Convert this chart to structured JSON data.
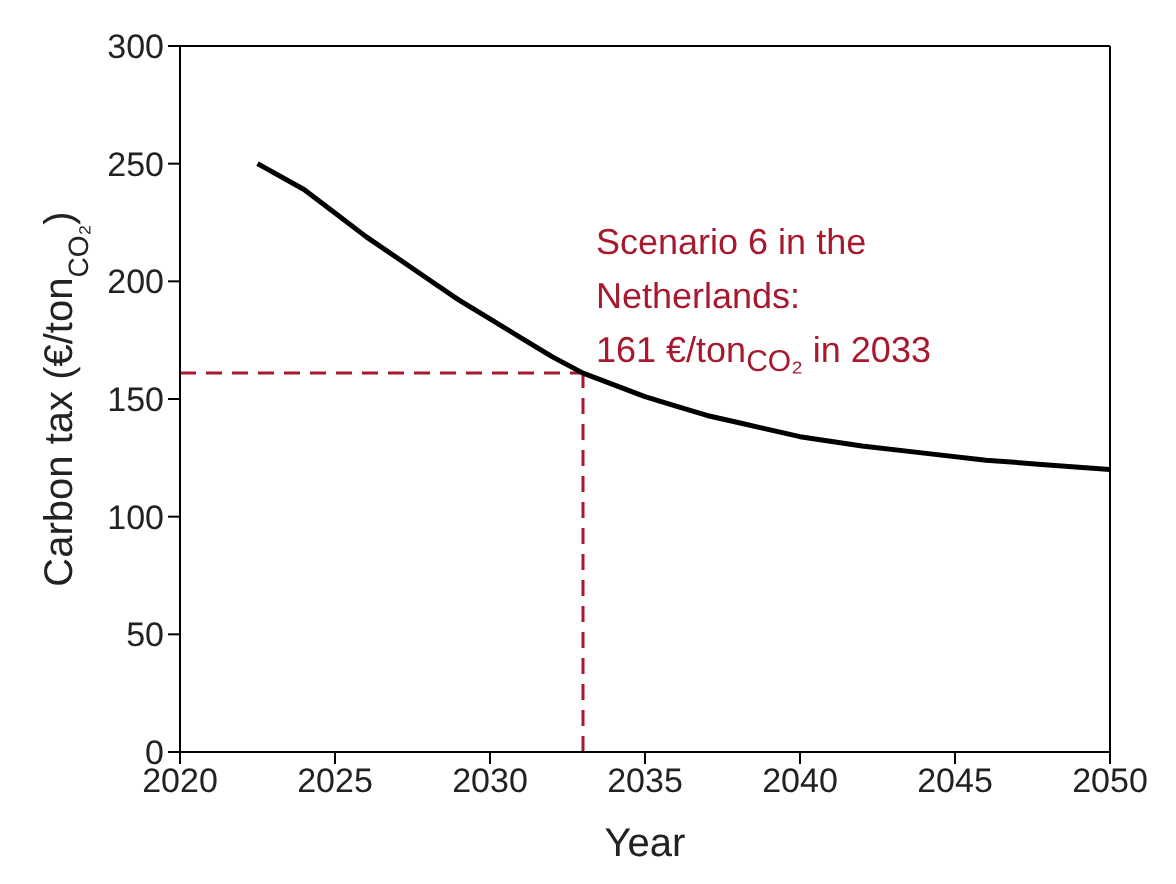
{
  "chart_data": {
    "type": "line",
    "xlabel": "Year",
    "ylabel": "Carbon tax (€/ton$_{CO₂}$)",
    "xlim": [
      2020,
      2050
    ],
    "xticks": [
      2020,
      2025,
      2030,
      2035,
      2040,
      2045,
      2050
    ],
    "ylim": [
      0,
      300
    ],
    "yticks": [
      0,
      50,
      100,
      150,
      200,
      250,
      300
    ],
    "series": [
      {
        "color": "#000000",
        "x": [
          2022.5,
          2024,
          2025,
          2026,
          2027,
          2028,
          2029,
          2030,
          2031,
          2032,
          2033,
          2034,
          2035,
          2036,
          2037,
          2038,
          2039,
          2040,
          2042,
          2044,
          2046,
          2048,
          2050
        ],
        "values": [
          250,
          239,
          229,
          219,
          210,
          201,
          192,
          184,
          176,
          168,
          161,
          156,
          151,
          147,
          143,
          140,
          137,
          134,
          130,
          127,
          124,
          122,
          120
        ]
      }
    ],
    "ref_lines": [
      {
        "axis": "y",
        "value": 161,
        "color": "#a6192e",
        "line_style": "dashed"
      },
      {
        "axis": "x",
        "value": 2033,
        "color": "#a6192e",
        "line_style": "dashed"
      }
    ],
    "annotations": [
      "Scenario 6 in the Netherlands: 161 €/ton$_{CO₂}$ in 2033"
    ],
    "legend": false,
    "marker": "none",
    "line_style": "solid"
  }
}
